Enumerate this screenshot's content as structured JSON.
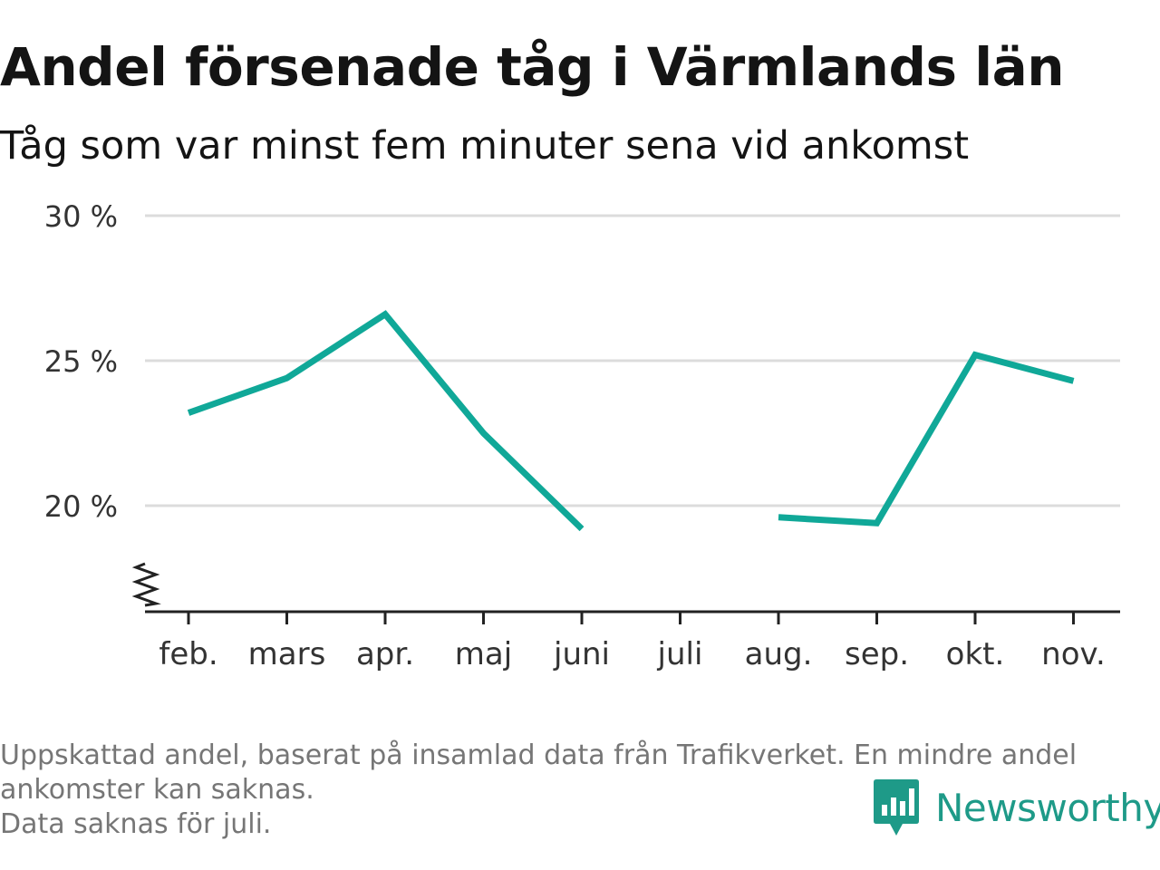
{
  "header": {
    "title": "Andel försenade tåg i Värmlands län",
    "subtitle": "Tåg som var minst fem minuter sena vid ankomst"
  },
  "chart_data": {
    "type": "line",
    "categories": [
      "feb.",
      "mars",
      "apr.",
      "maj",
      "juni",
      "juli",
      "aug.",
      "sep.",
      "okt.",
      "nov."
    ],
    "series": [
      {
        "values": [
          23.2,
          24.4,
          26.6,
          22.5,
          19.2,
          null,
          19.6,
          19.4,
          25.2,
          24.3
        ],
        "color": "#10a898"
      }
    ],
    "y_ticks": [
      "20 %",
      "25 %",
      "30 %"
    ],
    "y_tick_values": [
      20,
      25,
      30
    ],
    "ylim": [
      16.4,
      30
    ],
    "grid": true,
    "y_axis_break": true
  },
  "footnote": {
    "lines": [
      "Uppskattad andel, baserat på insamlad data från Trafikverket. En mindre andel",
      "ankomster kan saknas.",
      "Data saknas för juli."
    ]
  },
  "brand": {
    "name": "Newsworthy",
    "icon": "newsworthy-logo-icon",
    "color": "#1e9a88"
  }
}
